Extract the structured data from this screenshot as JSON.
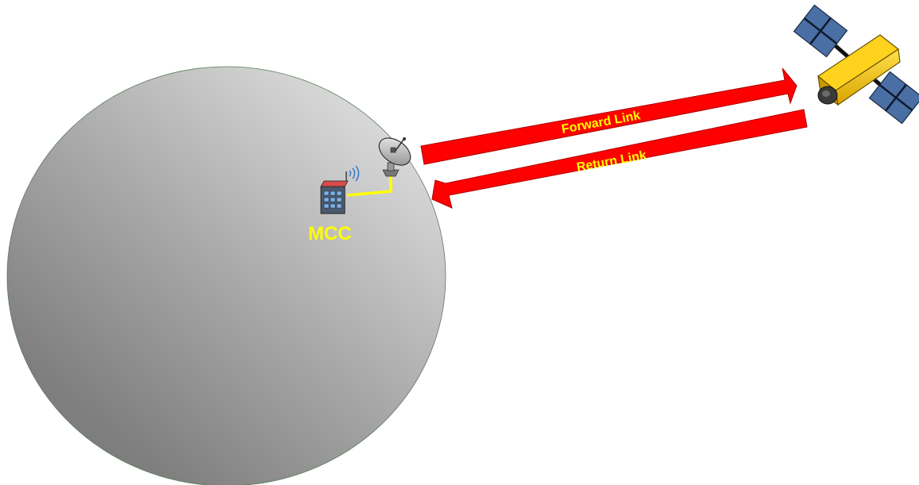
{
  "diagram": {
    "mcc_label": "MCC",
    "forward_link_label": "Forward Link",
    "return_link_label": "Return Link"
  },
  "colors": {
    "link_arrow": "#ff0000",
    "link_text": "#ffff00",
    "mcc_text": "#ffff00",
    "connector": "#ffff00",
    "earth_light": "#e2e2e2",
    "earth_dark": "#7e7e7e",
    "satellite_body": "#f5c400",
    "solar_panel": "#4a6fa5"
  },
  "icons": {
    "earth": "earth-globe-icon",
    "building": "building-icon",
    "dish": "satellite-dish-icon",
    "satellite": "satellite-icon",
    "signal": "wifi-signal-icon"
  }
}
